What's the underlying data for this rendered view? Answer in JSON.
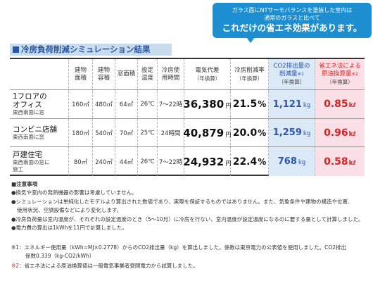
{
  "callout": {
    "line1": "ガラス面にNTサーモバランスを塗装した室内は",
    "line2": "通常のガラスと比べて",
    "line3": "これだけの省エネ効果があります。"
  },
  "heading": "冷房負荷削減シミュレーション結果",
  "headers": {
    "floor_area": "建物面積",
    "volume": "建物容積",
    "window_area": "窓面積",
    "set_temp": "設定温度",
    "cooling_hours": "冷房使用時間",
    "electricity": "電気代差",
    "electricity_sub": "（年換算）",
    "reduction_rate": "冷房削減率",
    "reduction_rate_sub": "（年換算）",
    "co2": "CO2排出量の削減量",
    "co2_mark": "※1",
    "co2_sub": "（年換算）",
    "oil": "省エネ法による原油換算量",
    "oil_mark": "※2",
    "oil_sub": "（年換算）"
  },
  "rows": [
    {
      "name": "1フロアのオフィス",
      "name_l1": "1フロアの",
      "name_l2": "オフィス",
      "sub": "東西南面に窓",
      "sub_l2": "",
      "floor_area": "160㎡",
      "volume": "480㎡",
      "window_area": "64㎡",
      "set_temp": "26℃",
      "cooling_hours": "7〜22時",
      "electricity": "36,380",
      "electricity_unit": "円",
      "reduction_rate": "21.5",
      "reduction_rate_unit": "%",
      "co2": "1,121",
      "co2_unit": "kg",
      "oil": "0.85",
      "oil_unit": "kℓ"
    },
    {
      "name": "コンビニ店舗",
      "name_l1": "コンビニ店舗",
      "name_l2": "",
      "sub": "東西南面に窓",
      "sub_l2": "",
      "floor_area": "180㎡",
      "volume": "540㎡",
      "window_area": "70㎡",
      "set_temp": "25℃",
      "cooling_hours": "24時間",
      "electricity": "40,879",
      "electricity_unit": "円",
      "reduction_rate": "20.0",
      "reduction_rate_unit": "%",
      "co2": "1,259",
      "co2_unit": "kg",
      "oil": "0.96",
      "oil_unit": "kℓ"
    },
    {
      "name": "戸建住宅",
      "name_l1": "戸建住宅",
      "name_l2": "",
      "sub": "東西南面の窓に",
      "sub_l2": "施工",
      "floor_area": "80㎡",
      "volume": "240㎡",
      "window_area": "44㎡",
      "set_temp": "26℃",
      "cooling_hours": "7〜22時",
      "electricity": "24,932",
      "electricity_unit": "円",
      "reduction_rate": "22.4",
      "reduction_rate_unit": "%",
      "co2": "768",
      "co2_unit": "kg",
      "oil": "0.58",
      "oil_unit": "kℓ"
    }
  ],
  "notes": {
    "title": "■注意事項",
    "items": [
      "●換気や室内の発熱機器の影響は考慮していません。",
      "●シミュレーションは単純化したモデルより算出された数値であり、実際を保証するものではありません。また、気象条件や建物の構造や位置、",
      "使用状況、空調設備などにより変化します。",
      "●冷房負荷量は室内温度が、それぞれの設定温度のとき（5〜10月）に冷房を行ない、室内温度が設定温度になるのに要する量として計算しました。",
      "●電力費の算出は1kWhを11円で計算しました。"
    ]
  },
  "footnotes": {
    "f1_mark": "※1",
    "f1_line1": "：エネルギー使用量（kWh=MJ×0.2778）からのCO2排出量（kg）を算出しました。係数は東京電力の公表値を使用しました。CO2排出",
    "f1_line2": "係数0.339（kg-CO2/kWh）",
    "f2_mark": "※2",
    "f2_text": "：省エネ法による原油換算値は一般電気事業者昼間電力から試算しました。"
  },
  "colors": {
    "callout_bg": "#1d8fd0",
    "heading_bg": "#c9dcef",
    "heading_text": "#2a57a0",
    "co2_blue": "#2b55a8",
    "oil_red": "#d32222",
    "co2_col_bg": "#dbe8f5",
    "oil_col_bg": "#fae0e6"
  }
}
